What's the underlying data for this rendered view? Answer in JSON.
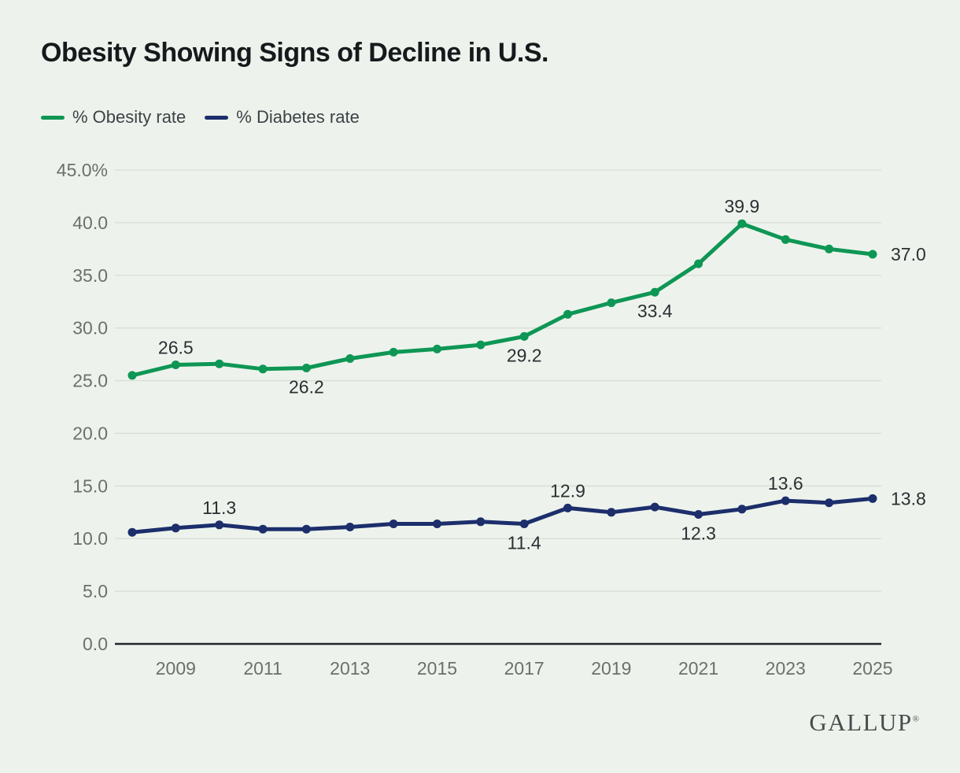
{
  "header": {
    "title": "Obesity Showing Signs of Decline in U.S."
  },
  "legend": [
    {
      "label": "% Obesity rate",
      "color": "#0E9655"
    },
    {
      "label": "% Diabetes rate",
      "color": "#1C2E6B"
    }
  ],
  "chart_data": {
    "type": "line",
    "title": "Obesity Showing Signs of Decline in U.S.",
    "x": [
      2008,
      2009,
      2010,
      2011,
      2012,
      2013,
      2014,
      2015,
      2016,
      2017,
      2018,
      2019,
      2020,
      2021,
      2022,
      2023,
      2024,
      2025
    ],
    "series": [
      {
        "name": "% Obesity rate",
        "color": "#0E9655",
        "values": [
          25.5,
          26.5,
          26.6,
          26.1,
          26.2,
          27.1,
          27.7,
          28.0,
          28.4,
          29.2,
          31.3,
          32.4,
          33.4,
          36.1,
          39.9,
          38.4,
          37.5,
          37.0
        ],
        "point_labels": [
          {
            "x": 2009,
            "text": "26.5",
            "position": "above"
          },
          {
            "x": 2012,
            "text": "26.2",
            "position": "below"
          },
          {
            "x": 2017,
            "text": "29.2",
            "position": "below"
          },
          {
            "x": 2020,
            "text": "33.4",
            "position": "below"
          },
          {
            "x": 2022,
            "text": "39.9",
            "position": "above"
          },
          {
            "x": 2025,
            "text": "37.0",
            "position": "right"
          }
        ]
      },
      {
        "name": "% Diabetes rate",
        "color": "#1C2E6B",
        "values": [
          10.6,
          11.0,
          11.3,
          10.9,
          10.9,
          11.1,
          11.4,
          11.4,
          11.6,
          11.4,
          12.9,
          12.5,
          13.0,
          12.3,
          12.8,
          13.6,
          13.4,
          13.8
        ],
        "point_labels": [
          {
            "x": 2010,
            "text": "11.3",
            "position": "above"
          },
          {
            "x": 2017,
            "text": "11.4",
            "position": "below"
          },
          {
            "x": 2018,
            "text": "12.9",
            "position": "above"
          },
          {
            "x": 2021,
            "text": "12.3",
            "position": "below"
          },
          {
            "x": 2023,
            "text": "13.6",
            "position": "above"
          },
          {
            "x": 2025,
            "text": "13.8",
            "position": "right"
          }
        ]
      }
    ],
    "ylim": [
      0,
      45
    ],
    "yticks": [
      {
        "value": 45,
        "label": "45.0%"
      },
      {
        "value": 40,
        "label": "40.0"
      },
      {
        "value": 35,
        "label": "35.0"
      },
      {
        "value": 30,
        "label": "30.0"
      },
      {
        "value": 25,
        "label": "25.0"
      },
      {
        "value": 20,
        "label": "20.0"
      },
      {
        "value": 15,
        "label": "15.0"
      },
      {
        "value": 10,
        "label": "10.0"
      },
      {
        "value": 5,
        "label": "5.0"
      },
      {
        "value": 0,
        "label": "0.0"
      }
    ],
    "xticks": [
      {
        "value": 2009,
        "label": "2009"
      },
      {
        "value": 2011,
        "label": "2011"
      },
      {
        "value": 2013,
        "label": "2013"
      },
      {
        "value": 2015,
        "label": "2015"
      },
      {
        "value": 2017,
        "label": "2017"
      },
      {
        "value": 2019,
        "label": "2019"
      },
      {
        "value": 2021,
        "label": "2021"
      },
      {
        "value": 2023,
        "label": "2023"
      },
      {
        "value": 2025,
        "label": "2025"
      }
    ],
    "grid": true,
    "legend_position": "top-left"
  },
  "footer": {
    "brand": "GALLUP",
    "reg_mark": "®"
  }
}
